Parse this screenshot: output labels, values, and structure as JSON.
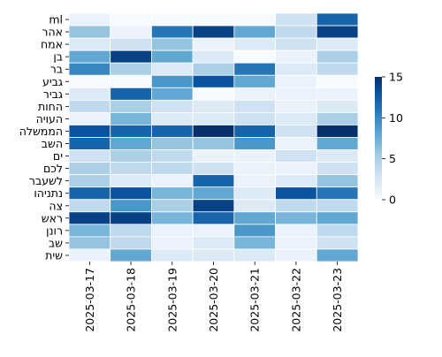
{
  "chart_data": {
    "type": "heatmap",
    "title": "",
    "xlabel": "",
    "ylabel": "",
    "x": [
      "2025-03-17",
      "2025-03-18",
      "2025-03-19",
      "2025-03-20",
      "2025-03-21",
      "2025-03-22",
      "2025-03-23"
    ],
    "y": [
      "ml",
      "אהר",
      "אמח",
      "בן",
      "בר",
      "גביע",
      "גביר",
      "החות",
      "העויה",
      "הממשלה",
      "השב",
      "ים",
      "לכם",
      "לשעבר",
      "נתניהו",
      "צה",
      "ראש",
      "רונן",
      "שב",
      "שית"
    ],
    "values": [
      [
        1,
        0,
        0,
        0,
        0,
        3,
        12
      ],
      [
        6,
        1,
        11,
        14,
        8,
        4,
        14
      ],
      [
        2,
        3,
        6,
        1,
        2,
        3,
        2
      ],
      [
        8,
        14,
        8,
        2,
        0,
        1,
        5
      ],
      [
        10,
        5,
        2,
        5,
        11,
        2,
        4
      ],
      [
        0,
        0,
        9,
        13,
        8,
        1,
        0
      ],
      [
        2,
        12,
        8,
        0,
        1,
        1,
        1
      ],
      [
        4,
        5,
        3,
        2,
        3,
        1,
        2
      ],
      [
        1,
        7,
        2,
        2,
        3,
        2,
        5
      ],
      [
        13,
        12,
        12,
        15,
        12,
        3,
        15
      ],
      [
        12,
        8,
        6,
        6,
        9,
        1,
        8
      ],
      [
        3,
        5,
        4,
        1,
        1,
        3,
        2
      ],
      [
        5,
        4,
        4,
        3,
        1,
        1,
        3
      ],
      [
        5,
        2,
        1,
        12,
        1,
        2,
        6
      ],
      [
        12,
        13,
        7,
        8,
        2,
        13,
        11
      ],
      [
        4,
        9,
        5,
        14,
        2,
        4,
        4
      ],
      [
        14,
        14,
        7,
        12,
        8,
        7,
        8
      ],
      [
        7,
        4,
        1,
        1,
        9,
        1,
        4
      ],
      [
        6,
        4,
        1,
        2,
        7,
        1,
        3
      ],
      [
        1,
        8,
        2,
        2,
        2,
        1,
        8
      ]
    ],
    "colorbar": {
      "min": 0,
      "max": 15,
      "ticks": [
        0,
        5,
        10,
        15
      ],
      "colormap": "Blues"
    },
    "grid": false,
    "cell_border_color": "#ffffff"
  }
}
